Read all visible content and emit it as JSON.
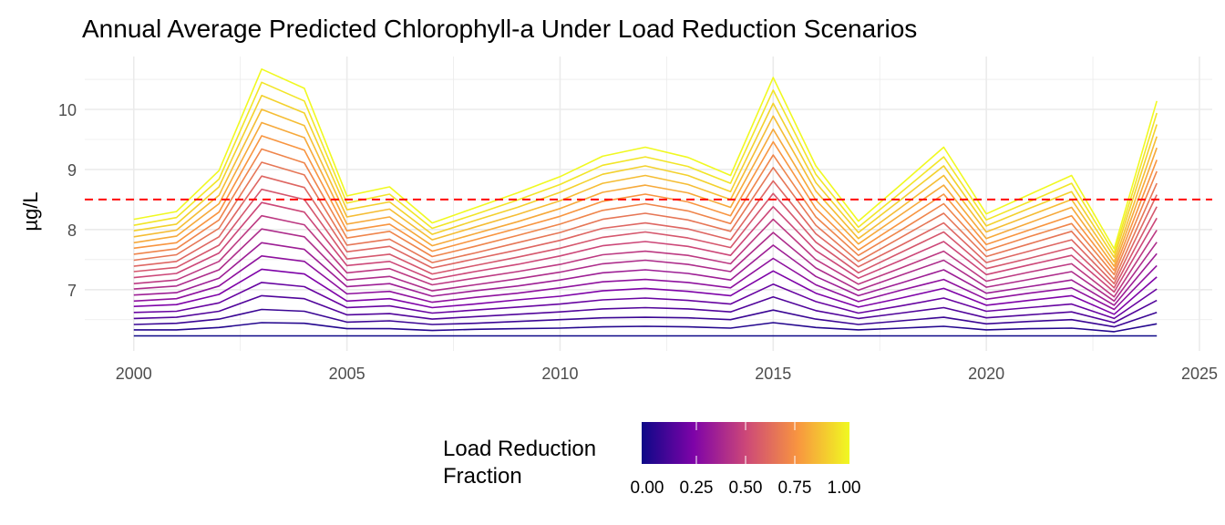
{
  "chart_data": {
    "type": "line",
    "title": "Annual Average Predicted Chlorophyll-a Under Load Reduction Scenarios",
    "xlabel": "",
    "ylabel": "µg/L",
    "xlim": [
      1998.85,
      2025.3
    ],
    "ylim": [
      5.98,
      10.88
    ],
    "x_ticks": [
      "2000",
      "2005",
      "2010",
      "2015",
      "2020",
      "2025"
    ],
    "y_ticks": [
      "7",
      "8",
      "9",
      "10"
    ],
    "grid": true,
    "x": [
      2000,
      2001,
      2002,
      2003,
      2004,
      2005,
      2006,
      2007,
      2008,
      2009,
      2010,
      2011,
      2012,
      2013,
      2014,
      2015,
      2016,
      2017,
      2018,
      2019,
      2020,
      2021,
      2022,
      2023,
      2024
    ],
    "reference_line": {
      "y": 8.5,
      "color": "#ff0000",
      "style": "dashed"
    },
    "legend": {
      "title": "Load Reduction Fraction",
      "title_lines": [
        "Load Reduction",
        "Fraction"
      ],
      "position": "bottom",
      "type": "colorbar",
      "colormap": "plasma",
      "color_stops": [
        "#0d0887",
        "#7e03a8",
        "#cc4778",
        "#f89540",
        "#f0f921"
      ],
      "range": [
        0,
        1
      ],
      "tick_labels": [
        "0.00",
        "0.25",
        "0.50",
        "0.75",
        "1.00"
      ]
    },
    "series": [
      {
        "fraction": 0.0,
        "values": [
          6.23,
          6.23,
          6.23,
          6.23,
          6.23,
          6.23,
          6.23,
          6.23,
          6.23,
          6.23,
          6.23,
          6.23,
          6.23,
          6.23,
          6.23,
          6.23,
          6.23,
          6.23,
          6.23,
          6.23,
          6.23,
          6.23,
          6.23,
          6.23,
          6.23
        ]
      },
      {
        "fraction": 0.05,
        "values": [
          6.33,
          6.33,
          6.37,
          6.45,
          6.44,
          6.35,
          6.35,
          6.32,
          6.34,
          6.35,
          6.36,
          6.38,
          6.39,
          6.38,
          6.36,
          6.45,
          6.37,
          6.33,
          6.36,
          6.39,
          6.33,
          6.35,
          6.36,
          6.3,
          6.43
        ]
      },
      {
        "fraction": 0.1,
        "values": [
          6.42,
          6.44,
          6.51,
          6.67,
          6.64,
          6.46,
          6.48,
          6.42,
          6.44,
          6.47,
          6.5,
          6.53,
          6.54,
          6.53,
          6.5,
          6.66,
          6.51,
          6.42,
          6.48,
          6.54,
          6.43,
          6.47,
          6.5,
          6.38,
          6.62
        ]
      },
      {
        "fraction": 0.15,
        "values": [
          6.52,
          6.54,
          6.64,
          6.9,
          6.85,
          6.58,
          6.6,
          6.51,
          6.55,
          6.59,
          6.63,
          6.68,
          6.7,
          6.68,
          6.63,
          6.88,
          6.65,
          6.52,
          6.61,
          6.7,
          6.53,
          6.58,
          6.63,
          6.45,
          6.82
        ]
      },
      {
        "fraction": 0.2,
        "values": [
          6.62,
          6.64,
          6.78,
          7.12,
          7.05,
          6.7,
          6.73,
          6.61,
          6.66,
          6.71,
          6.76,
          6.83,
          6.86,
          6.82,
          6.76,
          7.09,
          6.8,
          6.61,
          6.73,
          6.86,
          6.64,
          6.7,
          6.76,
          6.52,
          7.01
        ]
      },
      {
        "fraction": 0.25,
        "values": [
          6.72,
          6.75,
          6.92,
          7.34,
          7.26,
          6.81,
          6.85,
          6.7,
          6.76,
          6.83,
          6.89,
          6.98,
          7.02,
          6.97,
          6.9,
          7.31,
          6.94,
          6.71,
          6.86,
          7.02,
          6.74,
          6.82,
          6.9,
          6.59,
          7.21
        ]
      },
      {
        "fraction": 0.3,
        "values": [
          6.81,
          6.85,
          7.06,
          7.56,
          7.47,
          6.93,
          6.97,
          6.79,
          6.87,
          6.94,
          7.03,
          7.13,
          7.17,
          7.12,
          7.03,
          7.52,
          7.08,
          6.8,
          6.99,
          7.17,
          6.84,
          6.94,
          7.03,
          6.67,
          7.4
        ]
      },
      {
        "fraction": 0.35,
        "values": [
          6.91,
          6.95,
          7.19,
          7.78,
          7.67,
          7.05,
          7.1,
          6.89,
          6.98,
          7.06,
          7.16,
          7.28,
          7.33,
          7.27,
          7.16,
          7.74,
          7.22,
          6.9,
          7.11,
          7.33,
          6.94,
          7.05,
          7.16,
          6.74,
          7.6
        ]
      },
      {
        "fraction": 0.4,
        "values": [
          7.01,
          7.06,
          7.33,
          8.01,
          7.88,
          7.16,
          7.22,
          6.98,
          7.08,
          7.18,
          7.29,
          7.43,
          7.49,
          7.42,
          7.3,
          7.95,
          7.36,
          6.99,
          7.24,
          7.49,
          7.04,
          7.17,
          7.3,
          6.81,
          7.79
        ]
      },
      {
        "fraction": 0.45,
        "values": [
          7.1,
          7.16,
          7.47,
          8.23,
          8.08,
          7.28,
          7.35,
          7.08,
          7.19,
          7.3,
          7.42,
          7.58,
          7.64,
          7.57,
          7.43,
          8.17,
          7.5,
          7.09,
          7.36,
          7.64,
          7.14,
          7.29,
          7.43,
          6.88,
          7.99
        ]
      },
      {
        "fraction": 0.5,
        "values": [
          7.2,
          7.27,
          7.61,
          8.45,
          8.29,
          7.4,
          7.47,
          7.17,
          7.3,
          7.42,
          7.56,
          7.73,
          7.8,
          7.72,
          7.57,
          8.38,
          7.65,
          7.19,
          7.49,
          7.8,
          7.25,
          7.41,
          7.57,
          6.96,
          8.19
        ]
      },
      {
        "fraction": 0.55,
        "values": [
          7.3,
          7.37,
          7.74,
          8.67,
          8.5,
          7.51,
          7.59,
          7.26,
          7.4,
          7.54,
          7.69,
          7.87,
          7.96,
          7.86,
          7.7,
          8.6,
          7.79,
          7.28,
          7.62,
          7.96,
          7.35,
          7.52,
          7.7,
          7.03,
          8.38
        ]
      },
      {
        "fraction": 0.6,
        "values": [
          7.39,
          7.47,
          7.88,
          8.89,
          8.7,
          7.63,
          7.72,
          7.36,
          7.51,
          7.66,
          7.82,
          8.02,
          8.11,
          8.01,
          7.83,
          8.81,
          7.93,
          7.38,
          7.74,
          8.11,
          7.45,
          7.64,
          7.83,
          7.1,
          8.58
        ]
      },
      {
        "fraction": 0.65,
        "values": [
          7.49,
          7.58,
          8.02,
          9.12,
          8.91,
          7.74,
          7.84,
          7.45,
          7.61,
          7.78,
          7.95,
          8.17,
          8.27,
          8.16,
          7.97,
          9.03,
          8.07,
          7.47,
          7.87,
          8.27,
          7.55,
          7.76,
          7.97,
          7.17,
          8.77
        ]
      },
      {
        "fraction": 0.7,
        "values": [
          7.59,
          7.68,
          8.16,
          9.34,
          9.11,
          7.86,
          7.97,
          7.55,
          7.72,
          7.9,
          8.09,
          8.32,
          8.43,
          8.31,
          8.1,
          9.24,
          8.21,
          7.57,
          7.99,
          8.43,
          7.65,
          7.88,
          8.1,
          7.25,
          8.97
        ]
      },
      {
        "fraction": 0.75,
        "values": [
          7.69,
          7.78,
          8.29,
          9.56,
          9.32,
          7.98,
          8.09,
          7.64,
          7.83,
          8.02,
          8.22,
          8.47,
          8.59,
          8.46,
          8.23,
          9.46,
          8.35,
          7.66,
          8.12,
          8.59,
          7.75,
          7.99,
          8.23,
          7.32,
          9.16
        ]
      },
      {
        "fraction": 0.8,
        "values": [
          7.78,
          7.89,
          8.43,
          9.78,
          9.53,
          8.09,
          8.21,
          7.73,
          7.93,
          8.13,
          8.35,
          8.62,
          8.74,
          8.61,
          8.37,
          9.67,
          8.49,
          7.76,
          8.25,
          8.74,
          7.85,
          8.11,
          8.37,
          7.39,
          9.36
        ]
      },
      {
        "fraction": 0.85,
        "values": [
          7.88,
          7.99,
          8.57,
          10.0,
          9.73,
          8.21,
          8.34,
          7.83,
          8.04,
          8.25,
          8.48,
          8.77,
          8.9,
          8.75,
          8.5,
          9.89,
          8.64,
          7.85,
          8.37,
          8.9,
          7.96,
          8.23,
          8.5,
          7.46,
          9.55
        ]
      },
      {
        "fraction": 0.9,
        "values": [
          7.98,
          8.09,
          8.71,
          10.23,
          9.94,
          8.33,
          8.46,
          7.92,
          8.15,
          8.37,
          8.62,
          8.92,
          9.06,
          8.9,
          8.63,
          10.1,
          8.78,
          7.95,
          8.5,
          9.06,
          8.06,
          8.35,
          8.63,
          7.54,
          9.75
        ]
      },
      {
        "fraction": 0.95,
        "values": [
          8.07,
          8.2,
          8.84,
          10.45,
          10.14,
          8.44,
          8.59,
          8.02,
          8.25,
          8.49,
          8.75,
          9.07,
          9.21,
          9.05,
          8.77,
          10.32,
          8.92,
          8.04,
          8.62,
          9.21,
          8.16,
          8.46,
          8.77,
          7.61,
          9.94
        ]
      },
      {
        "fraction": 1.0,
        "values": [
          8.17,
          8.3,
          8.98,
          10.67,
          10.35,
          8.56,
          8.71,
          8.11,
          8.36,
          8.61,
          8.88,
          9.22,
          9.37,
          9.2,
          8.9,
          10.53,
          9.06,
          8.14,
          8.75,
          9.37,
          8.26,
          8.58,
          8.9,
          7.68,
          10.14
        ]
      }
    ]
  }
}
